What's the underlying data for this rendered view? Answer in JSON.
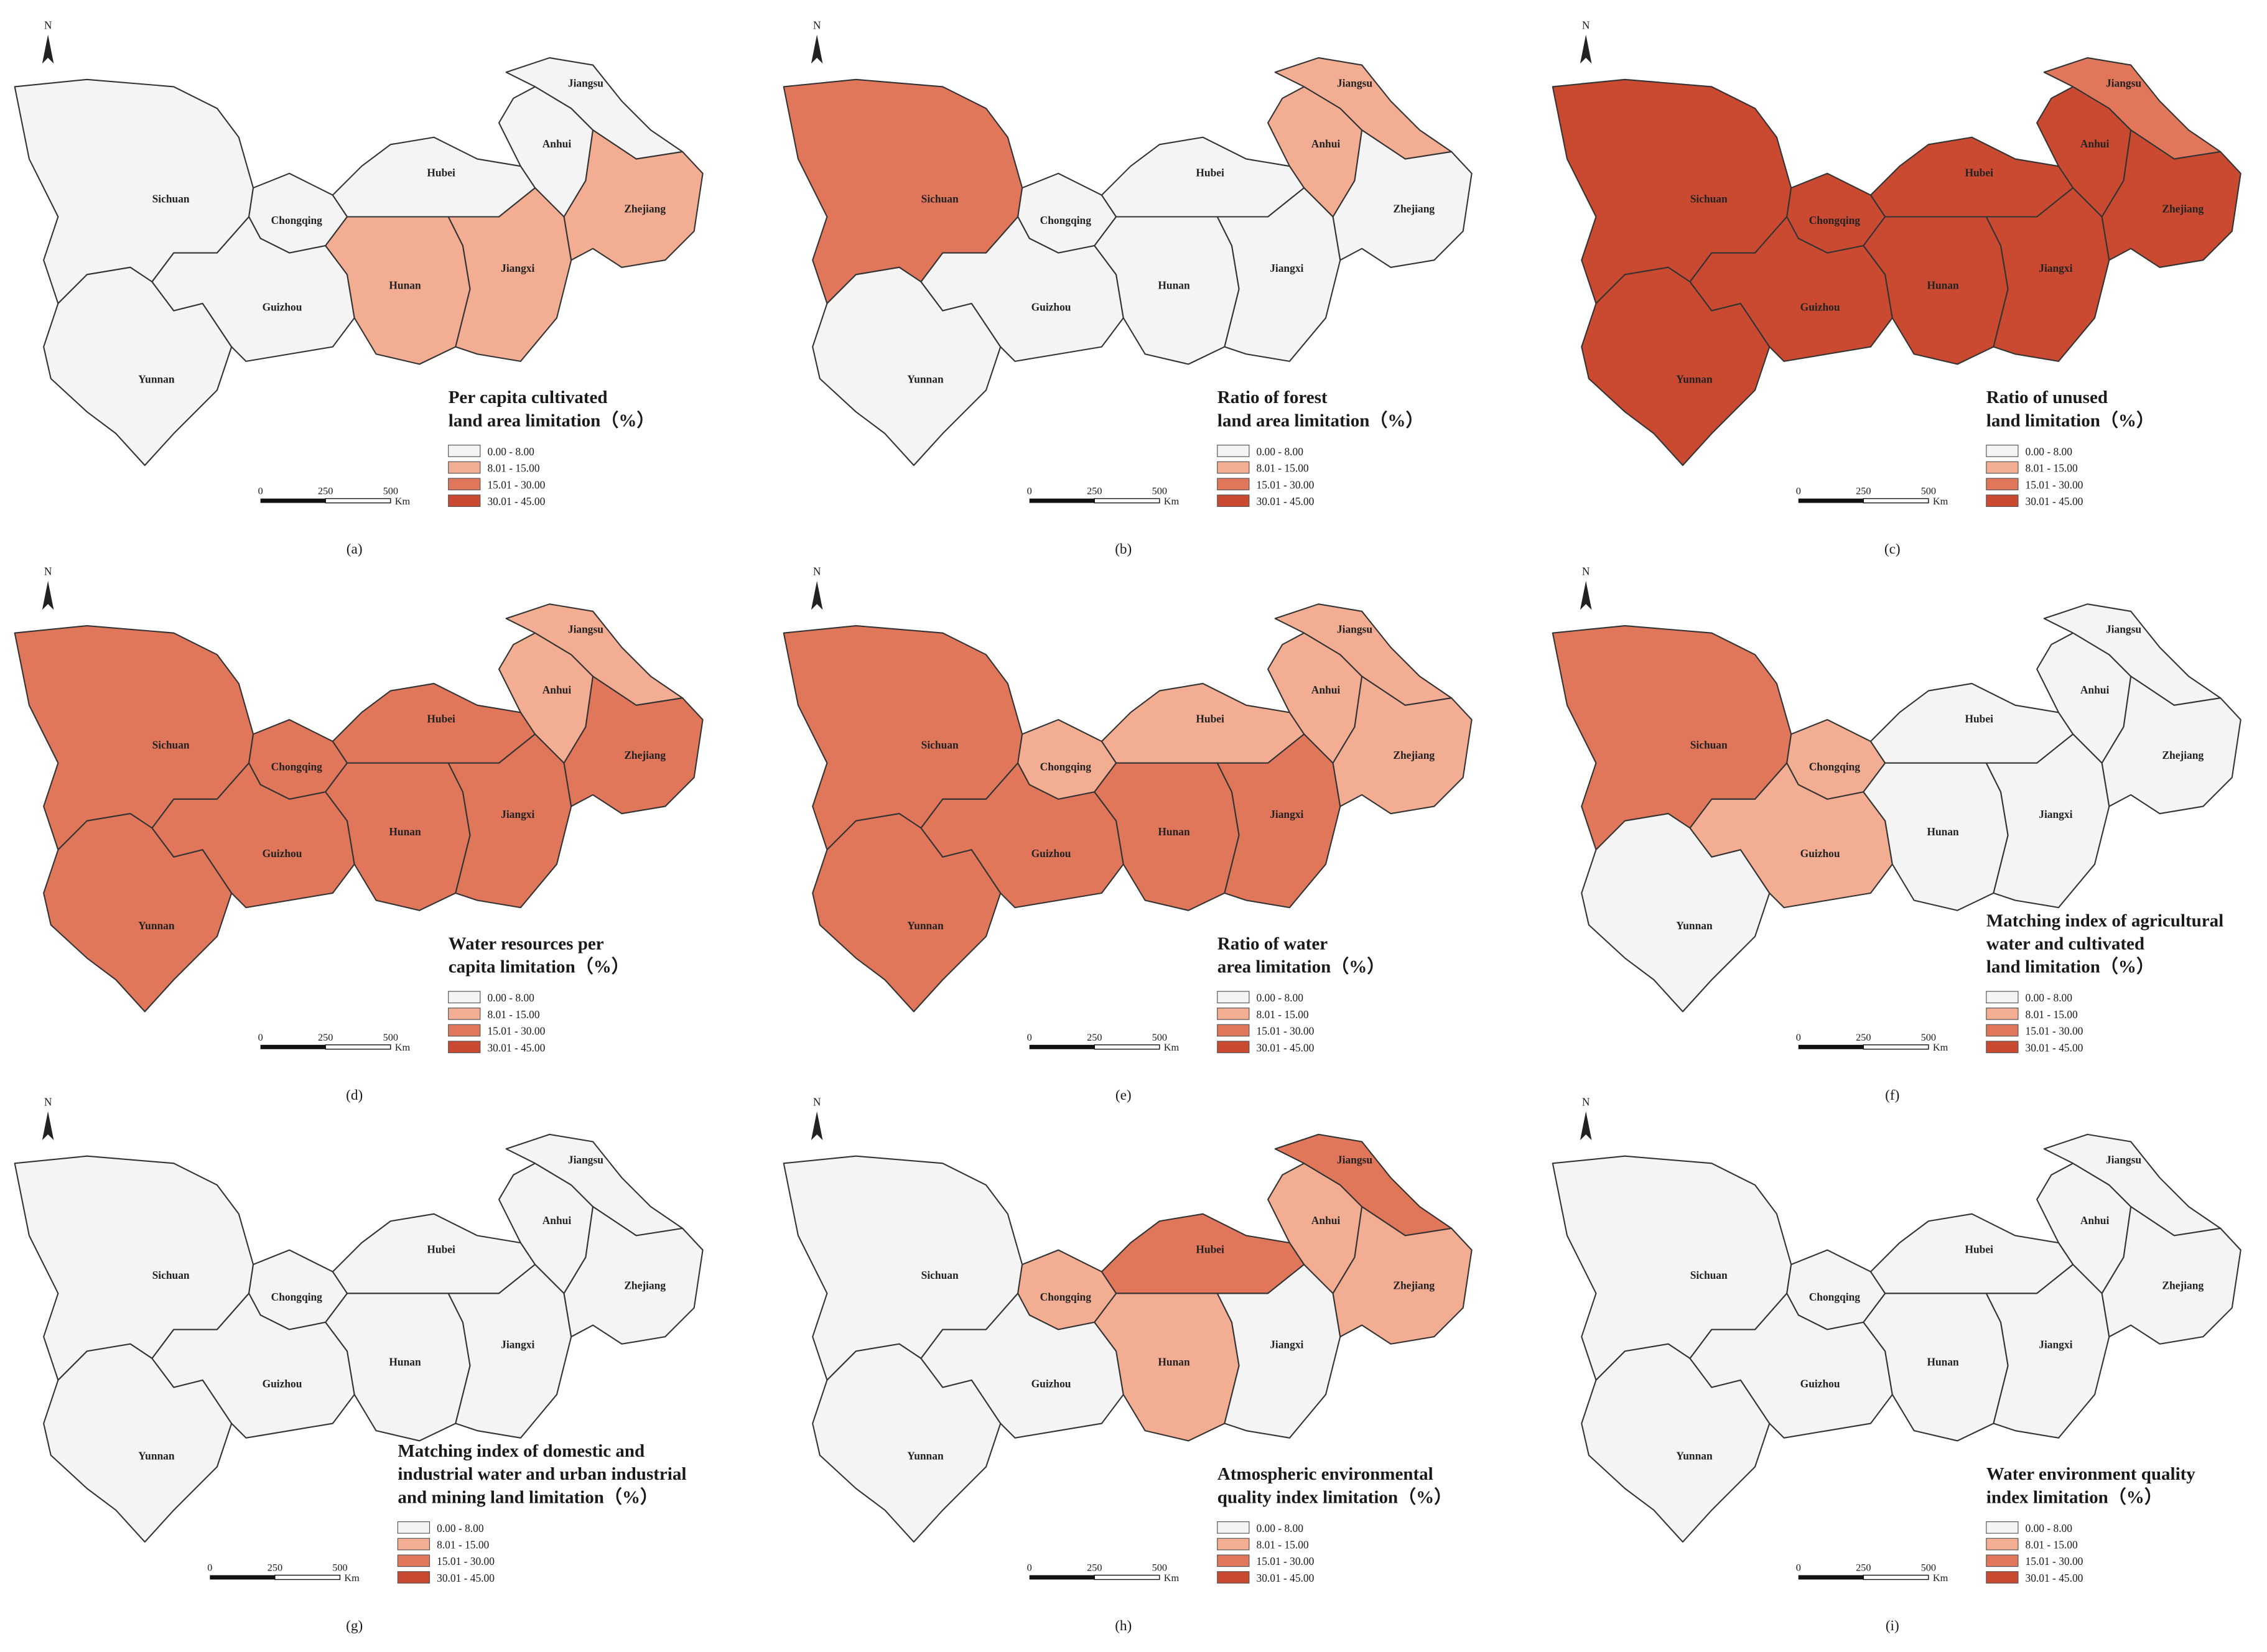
{
  "north": "N",
  "provinces": [
    "Sichuan",
    "Chongqing",
    "Yunnan",
    "Guizhou",
    "Hubei",
    "Hunan",
    "Jiangxi",
    "Anhui",
    "Jiangsu",
    "Zhejiang"
  ],
  "legend": {
    "labels": [
      "0.00 - 8.00",
      "8.01 - 15.00",
      "15.01 - 30.00",
      "30.01 - 45.00"
    ],
    "colors": [
      "#f4f4f4",
      "#f2ad93",
      "#e0765a",
      "#c94a30"
    ]
  },
  "scale_bar": {
    "labels": [
      "0",
      "250",
      "500"
    ],
    "unit": "Km"
  },
  "panels": [
    {
      "label": "(a)",
      "title": [
        "Per capita cultivated",
        "land area limitation（%）"
      ],
      "fills": [
        "#f4f4f4",
        "#f4f4f4",
        "#f4f4f4",
        "#f4f4f4",
        "#f4f4f4",
        "#f2ad93",
        "#f2ad93",
        "#f4f4f4",
        "#f4f4f4",
        "#f2ad93"
      ]
    },
    {
      "label": "(b)",
      "title": [
        "Ratio of forest",
        "land area limitation（%）"
      ],
      "fills": [
        "#e0765a",
        "#f4f4f4",
        "#f4f4f4",
        "#f4f4f4",
        "#f4f4f4",
        "#f4f4f4",
        "#f4f4f4",
        "#f2ad93",
        "#f2ad93",
        "#f4f4f4"
      ]
    },
    {
      "label": "(c)",
      "title": [
        "Ratio of unused",
        "land limitation（%）"
      ],
      "fills": [
        "#c94a30",
        "#c94a30",
        "#c94a30",
        "#c94a30",
        "#c94a30",
        "#c94a30",
        "#c94a30",
        "#c94a30",
        "#e0765a",
        "#c94a30"
      ]
    },
    {
      "label": "(d)",
      "title": [
        "Water resources per",
        "capita limitation（%）"
      ],
      "fills": [
        "#e0765a",
        "#e0765a",
        "#e0765a",
        "#e0765a",
        "#e0765a",
        "#e0765a",
        "#e0765a",
        "#f2ad93",
        "#f2ad93",
        "#e0765a"
      ]
    },
    {
      "label": "(e)",
      "title": [
        "Ratio of water",
        "area limitation（%）"
      ],
      "fills": [
        "#e0765a",
        "#f2ad93",
        "#e0765a",
        "#e0765a",
        "#f2ad93",
        "#e0765a",
        "#e0765a",
        "#f2ad93",
        "#f2ad93",
        "#f2ad93"
      ]
    },
    {
      "label": "(f)",
      "title": [
        "Matching index of agricultural",
        "water and cultivated",
        "land limitation（%）"
      ],
      "fills": [
        "#e0765a",
        "#f2ad93",
        "#f4f4f4",
        "#f2ad93",
        "#f4f4f4",
        "#f4f4f4",
        "#f4f4f4",
        "#f4f4f4",
        "#f4f4f4",
        "#f4f4f4"
      ]
    },
    {
      "label": "(g)",
      "title": [
        "Matching index of domestic and",
        "industrial water and urban industrial",
        "and mining land limitation（%）"
      ],
      "fills": [
        "#f4f4f4",
        "#f4f4f4",
        "#f4f4f4",
        "#f4f4f4",
        "#f4f4f4",
        "#f4f4f4",
        "#f4f4f4",
        "#f4f4f4",
        "#f4f4f4",
        "#f4f4f4"
      ]
    },
    {
      "label": "(h)",
      "title": [
        "Atmospheric environmental",
        "quality index limitation（%）"
      ],
      "fills": [
        "#f4f4f4",
        "#f2ad93",
        "#f4f4f4",
        "#f4f4f4",
        "#e0765a",
        "#f2ad93",
        "#f4f4f4",
        "#f2ad93",
        "#e0765a",
        "#f2ad93"
      ]
    },
    {
      "label": "(i)",
      "title": [
        "Water environment quality",
        "index limitation（%）"
      ],
      "fills": [
        "#f4f4f4",
        "#f4f4f4",
        "#f4f4f4",
        "#f4f4f4",
        "#f4f4f4",
        "#f4f4f4",
        "#f4f4f4",
        "#f4f4f4",
        "#f4f4f4",
        "#f4f4f4"
      ]
    }
  ]
}
